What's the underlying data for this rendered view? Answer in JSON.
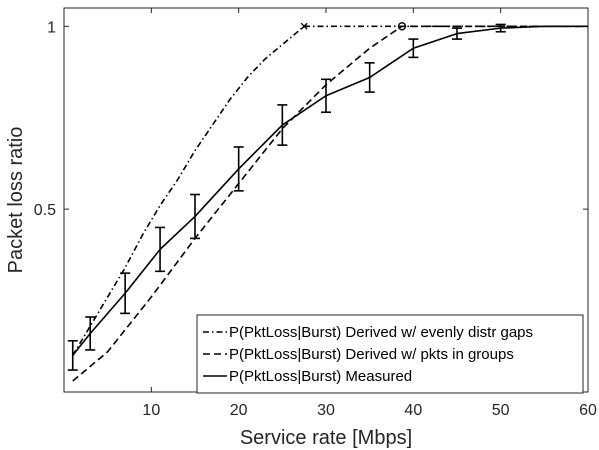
{
  "chart_data": {
    "type": "line",
    "title": "",
    "xlabel": "Service rate [Mbps]",
    "ylabel": "Packet loss ratio",
    "xlim": [
      0,
      60
    ],
    "ylim": [
      0,
      1.05
    ],
    "xticks": [
      10,
      20,
      30,
      40,
      50,
      60
    ],
    "xtick_labels": [
      "10",
      "20",
      "30",
      "40",
      "50",
      "60"
    ],
    "yticks": [
      0.5,
      1
    ],
    "ytick_labels": [
      "0.5",
      "1"
    ],
    "grid": false,
    "legend_position": "bottom-right",
    "series": [
      {
        "name": "P(PktLoss|Burst) Derived w/ evenly distr gaps",
        "style": "dashdot",
        "color": "#000000",
        "end_marker": "x",
        "x": [
          1,
          3,
          5,
          7,
          9,
          11,
          13,
          15,
          17,
          19,
          21,
          23,
          25,
          27.5,
          30,
          35,
          40,
          45,
          50,
          55,
          60
        ],
        "y": [
          0.1,
          0.18,
          0.26,
          0.34,
          0.43,
          0.51,
          0.58,
          0.66,
          0.73,
          0.8,
          0.86,
          0.91,
          0.95,
          1.0,
          1.0,
          1.0,
          1.0,
          1.0,
          1.0,
          1.0,
          1.0
        ]
      },
      {
        "name": "P(PktLoss|Burst) Derived w/ pkts in groups",
        "style": "dashed",
        "color": "#000000",
        "end_marker": "o",
        "x": [
          1,
          5,
          10,
          15,
          20,
          25,
          30,
          35,
          38.7,
          40,
          45,
          50,
          55,
          60
        ],
        "y": [
          0.03,
          0.11,
          0.26,
          0.42,
          0.57,
          0.72,
          0.84,
          0.94,
          1.0,
          1.0,
          1.0,
          1.0,
          1.0,
          1.0
        ]
      },
      {
        "name": "P(PktLoss|Burst) Measured",
        "style": "solid",
        "color": "#000000",
        "x": [
          1,
          3,
          7,
          11,
          15,
          20,
          25,
          30,
          35,
          40,
          45,
          50,
          55,
          60
        ],
        "y": [
          0.1,
          0.16,
          0.27,
          0.39,
          0.48,
          0.61,
          0.73,
          0.81,
          0.86,
          0.94,
          0.98,
          0.995,
          1.0,
          1.0
        ],
        "error": [
          0.04,
          0.045,
          0.055,
          0.06,
          0.06,
          0.06,
          0.055,
          0.045,
          0.04,
          0.025,
          0.015,
          0.01,
          0.0,
          0.0
        ]
      }
    ]
  }
}
